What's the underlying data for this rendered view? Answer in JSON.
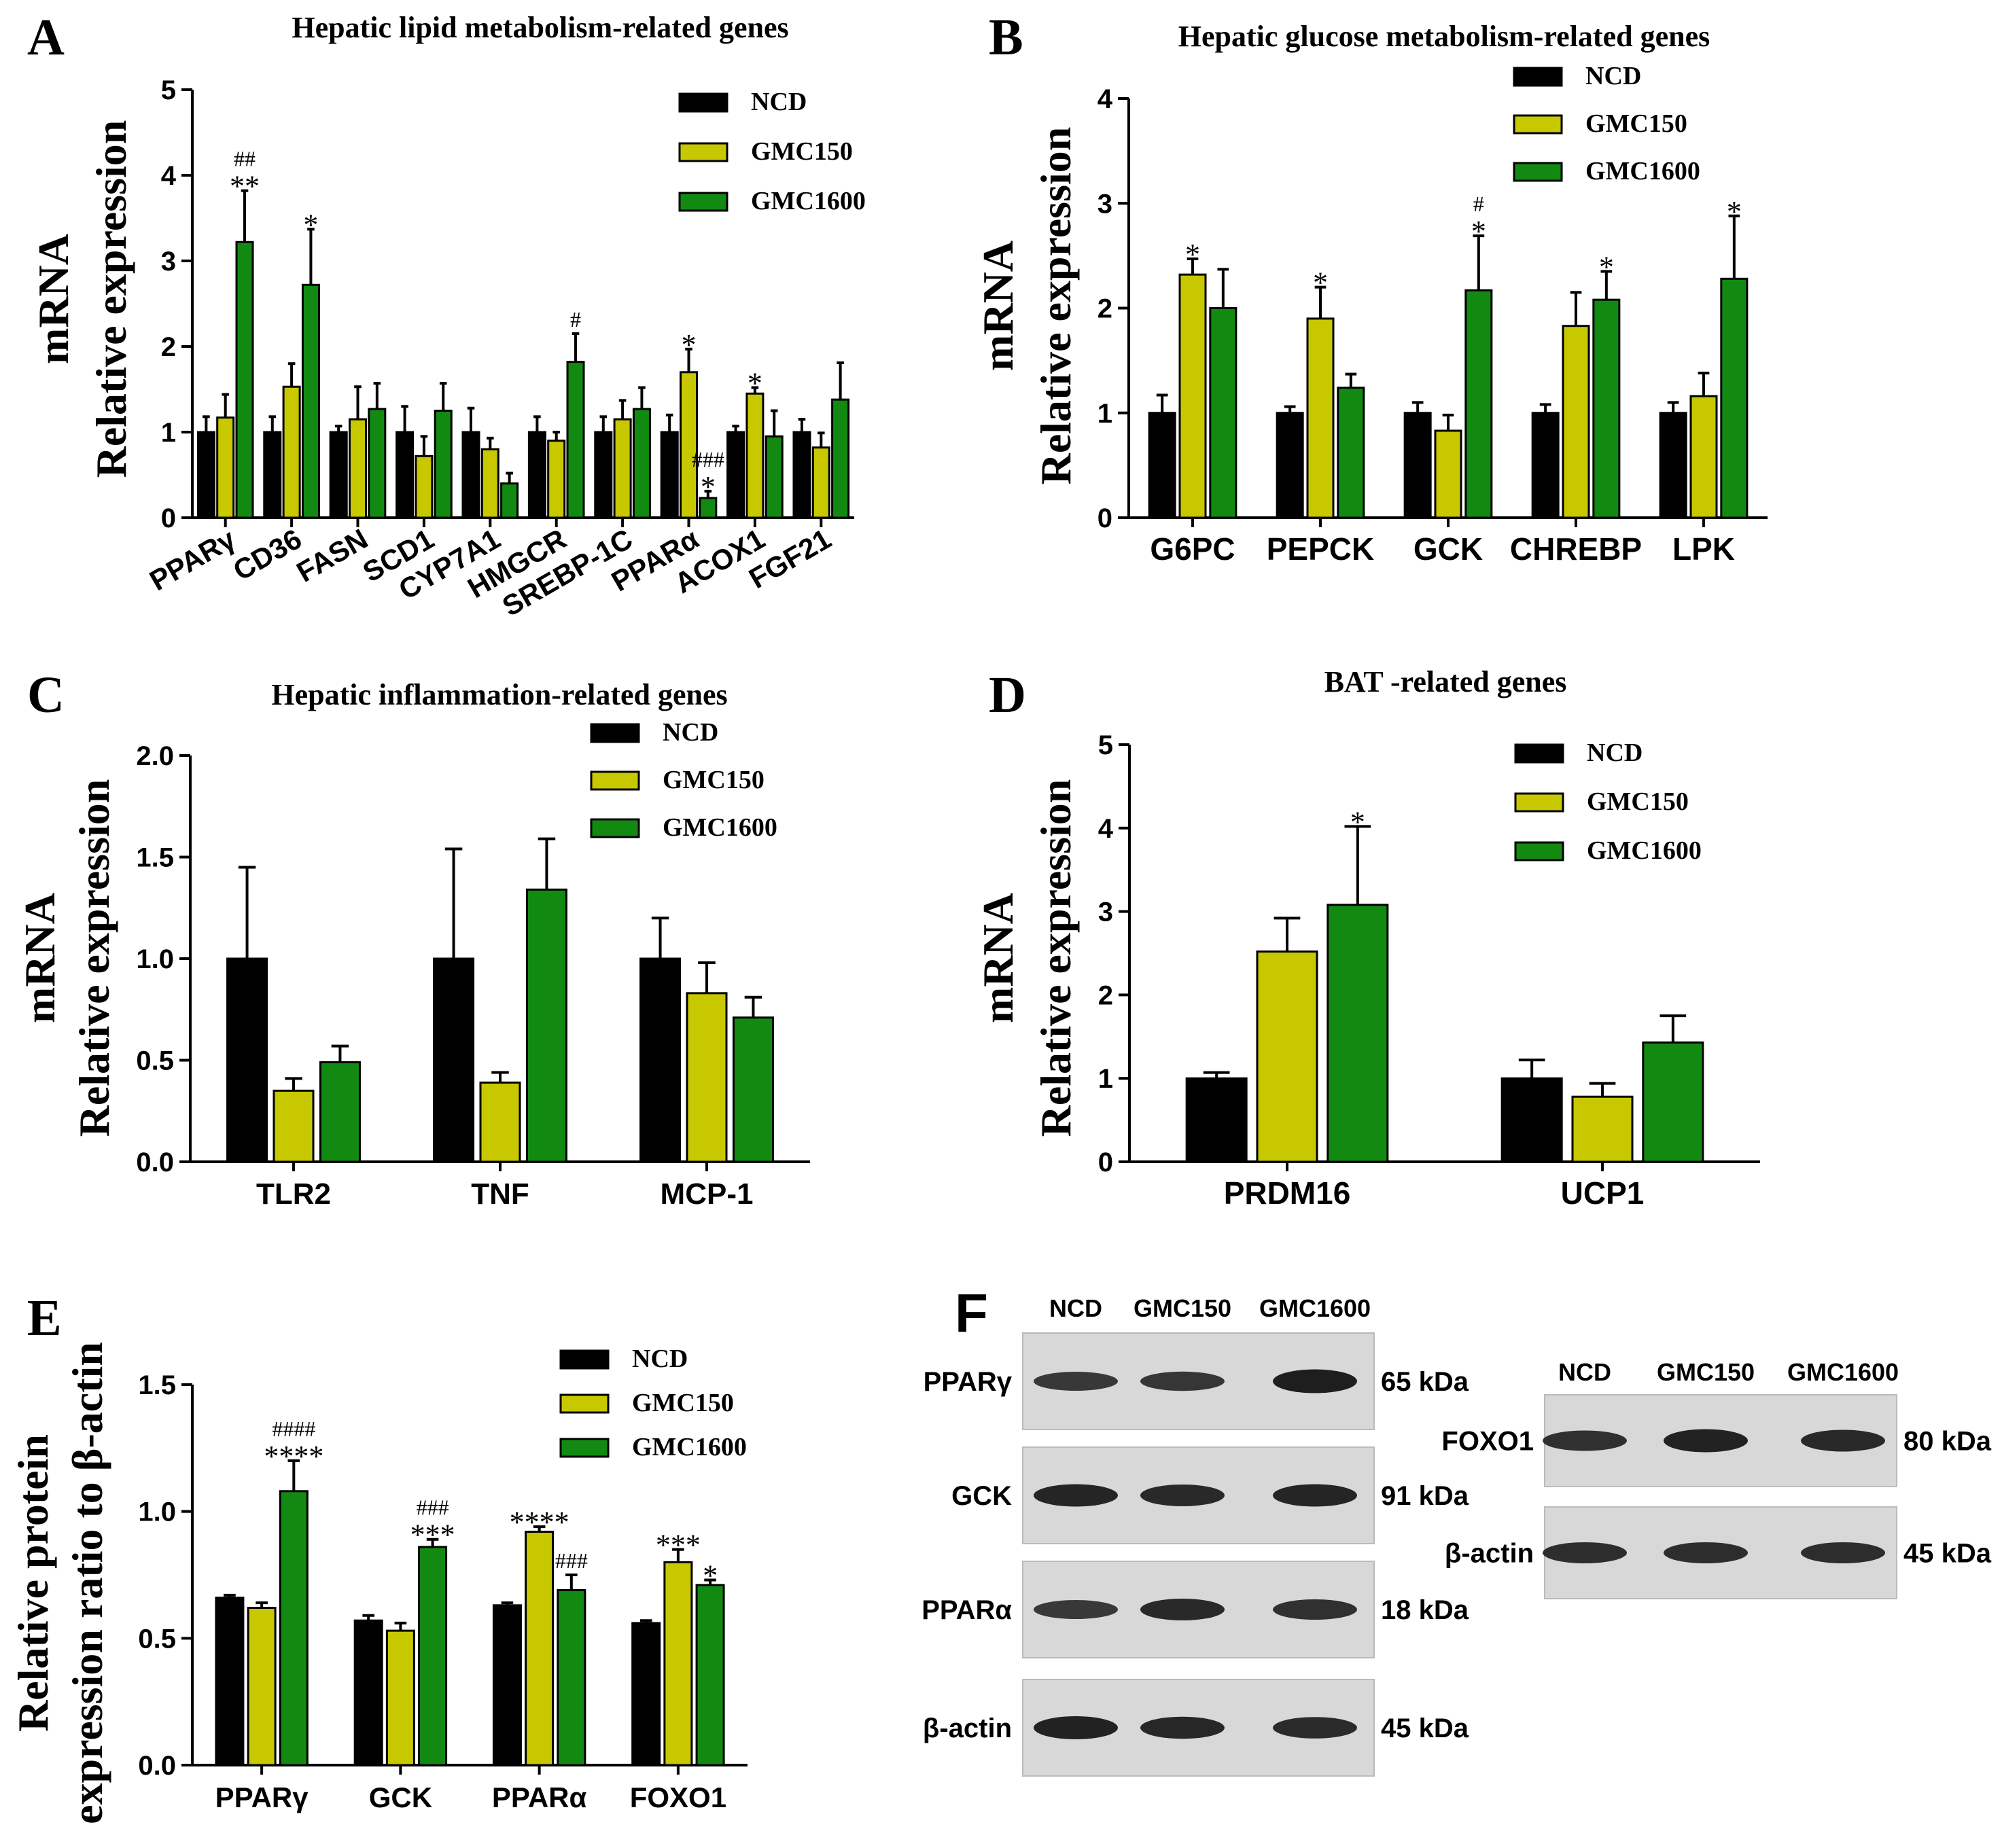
{
  "colors": {
    "NCD": "#000000",
    "GMC150": "#c8c800",
    "GMC1600": "#128a12"
  },
  "chart_data": [
    {
      "id": "A",
      "type": "bar",
      "letter": "A",
      "title": "Hepatic lipid metabolism-related genes",
      "ylabel_line1": "mRNA",
      "ylabel_line2": "Relative expression",
      "ylim": [
        0,
        5
      ],
      "yticks": [
        "0",
        "1",
        "2",
        "3",
        "4",
        "5"
      ],
      "categories": [
        "PPARγ",
        "CD36",
        "FASN",
        "SCD1",
        "CYP7A1",
        "HMGCR",
        "SREBP-1C",
        "PPARα",
        "ACOX1",
        "FGF21"
      ],
      "series": [
        {
          "name": "NCD",
          "values": [
            1.0,
            1.0,
            1.0,
            1.0,
            1.0,
            1.0,
            1.0,
            1.0,
            1.0,
            1.0
          ],
          "errors": [
            0.18,
            0.18,
            0.07,
            0.3,
            0.28,
            0.18,
            0.18,
            0.2,
            0.07,
            0.15
          ]
        },
        {
          "name": "GMC150",
          "values": [
            1.17,
            1.53,
            1.15,
            0.72,
            0.8,
            0.9,
            1.15,
            1.7,
            1.45,
            0.82
          ],
          "errors": [
            0.27,
            0.27,
            0.38,
            0.23,
            0.13,
            0.1,
            0.22,
            0.27,
            0.07,
            0.17
          ]
        },
        {
          "name": "GMC1600",
          "values": [
            3.22,
            2.72,
            1.27,
            1.25,
            0.4,
            1.82,
            1.27,
            0.23,
            0.95,
            1.38
          ],
          "errors": [
            0.6,
            0.65,
            0.3,
            0.32,
            0.12,
            0.33,
            0.25,
            0.08,
            0.3,
            0.43
          ]
        }
      ],
      "annotations": [
        {
          "cat": 0,
          "series": 2,
          "lines": [
            "##",
            "**"
          ]
        },
        {
          "cat": 1,
          "series": 2,
          "lines": [
            "*"
          ]
        },
        {
          "cat": 5,
          "series": 2,
          "lines": [
            "#"
          ]
        },
        {
          "cat": 7,
          "series": 1,
          "lines": [
            "*"
          ]
        },
        {
          "cat": 7,
          "series": 2,
          "lines": [
            "###",
            "*"
          ]
        },
        {
          "cat": 8,
          "series": 1,
          "lines": [
            "*"
          ]
        }
      ],
      "legend": [
        "NCD",
        "GMC150",
        "GMC1600"
      ]
    },
    {
      "id": "B",
      "type": "bar",
      "letter": "B",
      "title": "Hepatic glucose metabolism-related genes",
      "ylabel_line1": "mRNA",
      "ylabel_line2": "Relative expression",
      "ylim": [
        0,
        4
      ],
      "yticks": [
        "0",
        "1",
        "2",
        "3",
        "4"
      ],
      "categories": [
        "G6PC",
        "PEPCK",
        "GCK",
        "CHREBP",
        "LPK"
      ],
      "series": [
        {
          "name": "NCD",
          "values": [
            1.0,
            1.0,
            1.0,
            1.0,
            1.0
          ],
          "errors": [
            0.17,
            0.06,
            0.1,
            0.08,
            0.1
          ]
        },
        {
          "name": "GMC150",
          "values": [
            2.32,
            1.9,
            0.83,
            1.83,
            1.16
          ],
          "errors": [
            0.15,
            0.3,
            0.15,
            0.32,
            0.22
          ]
        },
        {
          "name": "GMC1600",
          "values": [
            2.0,
            1.24,
            2.17,
            2.08,
            2.28
          ],
          "errors": [
            0.37,
            0.13,
            0.52,
            0.27,
            0.6
          ]
        }
      ],
      "annotations": [
        {
          "cat": 0,
          "series": 1,
          "lines": [
            "*"
          ]
        },
        {
          "cat": 1,
          "series": 1,
          "lines": [
            "*"
          ]
        },
        {
          "cat": 2,
          "series": 2,
          "lines": [
            "#",
            "*"
          ]
        },
        {
          "cat": 3,
          "series": 2,
          "lines": [
            "*"
          ]
        },
        {
          "cat": 4,
          "series": 2,
          "lines": [
            "*"
          ]
        }
      ],
      "legend": [
        "NCD",
        "GMC150",
        "GMC1600"
      ]
    },
    {
      "id": "C",
      "type": "bar",
      "letter": "C",
      "title": "Hepatic inflammation-related genes",
      "ylabel_line1": "mRNA",
      "ylabel_line2": "Relative expression",
      "ylim": [
        0,
        2
      ],
      "yticks": [
        "0.0",
        "0.5",
        "1.0",
        "1.5",
        "2.0"
      ],
      "categories": [
        "TLR2",
        "TNF",
        "MCP-1"
      ],
      "series": [
        {
          "name": "NCD",
          "values": [
            1.0,
            1.0,
            1.0
          ],
          "errors": [
            0.45,
            0.54,
            0.2
          ]
        },
        {
          "name": "GMC150",
          "values": [
            0.35,
            0.39,
            0.83
          ],
          "errors": [
            0.06,
            0.05,
            0.15
          ]
        },
        {
          "name": "GMC1600",
          "values": [
            0.49,
            1.34,
            0.71
          ],
          "errors": [
            0.08,
            0.25,
            0.1
          ]
        }
      ],
      "annotations": [],
      "legend": [
        "NCD",
        "GMC150",
        "GMC1600"
      ]
    },
    {
      "id": "D",
      "type": "bar",
      "letter": "D",
      "title": "BAT -related genes",
      "ylabel_line1": "mRNA",
      "ylabel_line2": "Relative expression",
      "ylim": [
        0,
        5
      ],
      "yticks": [
        "0",
        "1",
        "2",
        "3",
        "4",
        "5"
      ],
      "categories": [
        "PRDM16",
        "UCP1"
      ],
      "series": [
        {
          "name": "NCD",
          "values": [
            1.0,
            1.0
          ],
          "errors": [
            0.07,
            0.22
          ]
        },
        {
          "name": "GMC150",
          "values": [
            2.52,
            0.78
          ],
          "errors": [
            0.4,
            0.16
          ]
        },
        {
          "name": "GMC1600",
          "values": [
            3.08,
            1.43
          ],
          "errors": [
            0.94,
            0.32
          ]
        }
      ],
      "annotations": [
        {
          "cat": 0,
          "series": 2,
          "lines": [
            "*"
          ]
        }
      ],
      "legend": [
        "NCD",
        "GMC150",
        "GMC1600"
      ]
    },
    {
      "id": "E",
      "type": "bar",
      "letter": "E",
      "title": "",
      "ylabel_line1": "Relative protein",
      "ylabel_line2": "expression ratio to β-actin",
      "ylim": [
        0,
        1.5
      ],
      "yticks": [
        "0.0",
        "0.5",
        "1.0",
        "1.5"
      ],
      "categories": [
        "PPARγ",
        "GCK",
        "PPARα",
        "FOXO1"
      ],
      "series": [
        {
          "name": "NCD",
          "values": [
            0.66,
            0.57,
            0.63,
            0.56
          ],
          "errors": [
            0.01,
            0.02,
            0.01,
            0.01
          ]
        },
        {
          "name": "GMC150",
          "values": [
            0.62,
            0.53,
            0.92,
            0.8
          ],
          "errors": [
            0.02,
            0.03,
            0.02,
            0.05
          ]
        },
        {
          "name": "GMC1600",
          "values": [
            1.08,
            0.86,
            0.69,
            0.71
          ],
          "errors": [
            0.12,
            0.03,
            0.06,
            0.02
          ]
        }
      ],
      "annotations": [
        {
          "cat": 0,
          "series": 2,
          "lines": [
            "####",
            "****"
          ]
        },
        {
          "cat": 1,
          "series": 2,
          "lines": [
            "###",
            "***"
          ]
        },
        {
          "cat": 2,
          "series": 1,
          "lines": [
            "****"
          ]
        },
        {
          "cat": 2,
          "series": 2,
          "lines": [
            "###"
          ]
        },
        {
          "cat": 3,
          "series": 1,
          "lines": [
            "***"
          ]
        },
        {
          "cat": 3,
          "series": 2,
          "lines": [
            "*"
          ]
        }
      ],
      "legend": [
        "NCD",
        "GMC150",
        "GMC1600"
      ]
    }
  ],
  "blots": {
    "letter": "F",
    "left": {
      "lanes": [
        "NCD",
        "GMC150",
        "GMC1600"
      ],
      "rows": [
        {
          "protein": "PPARγ",
          "size": "65 kDa",
          "intensity": [
            0.6,
            0.62,
            0.95
          ]
        },
        {
          "protein": "GCK",
          "size": "91 kDa",
          "intensity": [
            0.85,
            0.8,
            0.85
          ]
        },
        {
          "protein": "PPARα",
          "size": "18 kDa",
          "intensity": [
            0.6,
            0.8,
            0.7
          ]
        },
        {
          "protein": "β-actin",
          "size": "45 kDa",
          "intensity": [
            0.9,
            0.82,
            0.78
          ]
        }
      ]
    },
    "right": {
      "lanes": [
        "NCD",
        "GMC150",
        "GMC1600"
      ],
      "rows": [
        {
          "protein": "FOXO1",
          "size": "80 kDa",
          "intensity": [
            0.7,
            0.9,
            0.8
          ]
        },
        {
          "protein": "β-actin",
          "size": "45 kDa",
          "intensity": [
            0.75,
            0.75,
            0.75
          ]
        }
      ]
    }
  }
}
